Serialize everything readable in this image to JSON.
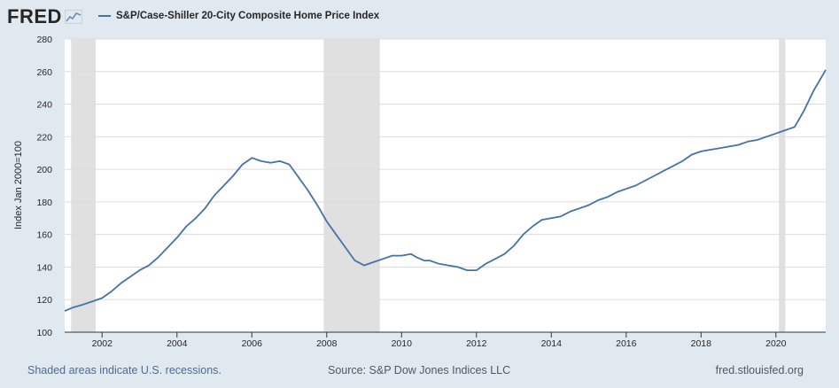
{
  "header": {
    "logo_text": "FRED",
    "logo_icon": "line-chart-icon",
    "legend_label": "S&P/Case-Shiller 20-City Composite Home Price Index"
  },
  "footer": {
    "left": "Shaded areas indicate U.S. recessions.",
    "middle": "Source: S&P Dow Jones Indices LLC",
    "right": "fred.stlouisfed.org"
  },
  "colors": {
    "line": "#4572a7",
    "recession": "#e0e0e0",
    "background": "#e1e9f0",
    "plot_background": "#ffffff",
    "grid": "#dddddd"
  },
  "chart_data": {
    "type": "line",
    "title": "",
    "xlabel": "",
    "ylabel": "Index Jan 2000=100",
    "xlim": [
      2001.0,
      2021.33
    ],
    "ylim": [
      100,
      280
    ],
    "y_ticks": [
      100,
      120,
      140,
      160,
      180,
      200,
      220,
      240,
      260,
      280
    ],
    "x_ticks": [
      2002,
      2004,
      2006,
      2008,
      2010,
      2012,
      2014,
      2016,
      2018,
      2020
    ],
    "grid": true,
    "legend": "top-left",
    "recessions": [
      [
        2001.17,
        2001.83
      ],
      [
        2007.92,
        2009.42
      ],
      [
        2020.08,
        2020.25
      ]
    ],
    "series": [
      {
        "name": "S&P/Case-Shiller 20-City Composite Home Price Index",
        "x": [
          2001.0,
          2001.2,
          2001.5,
          2001.75,
          2002.0,
          2002.25,
          2002.5,
          2002.75,
          2003.0,
          2003.25,
          2003.5,
          2003.75,
          2004.0,
          2004.25,
          2004.5,
          2004.75,
          2005.0,
          2005.25,
          2005.5,
          2005.75,
          2006.0,
          2006.25,
          2006.5,
          2006.75,
          2007.0,
          2007.25,
          2007.5,
          2007.75,
          2008.0,
          2008.25,
          2008.5,
          2008.75,
          2009.0,
          2009.25,
          2009.5,
          2009.75,
          2010.0,
          2010.25,
          2010.4,
          2010.6,
          2010.75,
          2011.0,
          2011.25,
          2011.5,
          2011.75,
          2012.0,
          2012.25,
          2012.5,
          2012.75,
          2013.0,
          2013.25,
          2013.5,
          2013.75,
          2014.0,
          2014.25,
          2014.5,
          2014.75,
          2015.0,
          2015.25,
          2015.5,
          2015.75,
          2016.0,
          2016.25,
          2016.5,
          2016.75,
          2017.0,
          2017.25,
          2017.5,
          2017.75,
          2018.0,
          2018.25,
          2018.5,
          2018.75,
          2019.0,
          2019.25,
          2019.5,
          2019.75,
          2020.0,
          2020.25,
          2020.5,
          2020.75,
          2021.0,
          2021.33
        ],
        "y": [
          113,
          115,
          117,
          119,
          121,
          125,
          130,
          134,
          138,
          141,
          146,
          152,
          158,
          165,
          170,
          176,
          184,
          190,
          196,
          203,
          207,
          205,
          204,
          205,
          203,
          195,
          187,
          178,
          168,
          160,
          152,
          144,
          141,
          143,
          145,
          147,
          147,
          148,
          146,
          144,
          144,
          142,
          141,
          140,
          138,
          138,
          142,
          145,
          148,
          153,
          160,
          165,
          169,
          170,
          171,
          174,
          176,
          178,
          181,
          183,
          186,
          188,
          190,
          193,
          196,
          199,
          202,
          205,
          209,
          211,
          212,
          213,
          214,
          215,
          217,
          218,
          220,
          222,
          224,
          226,
          236,
          248,
          261
        ]
      }
    ]
  }
}
